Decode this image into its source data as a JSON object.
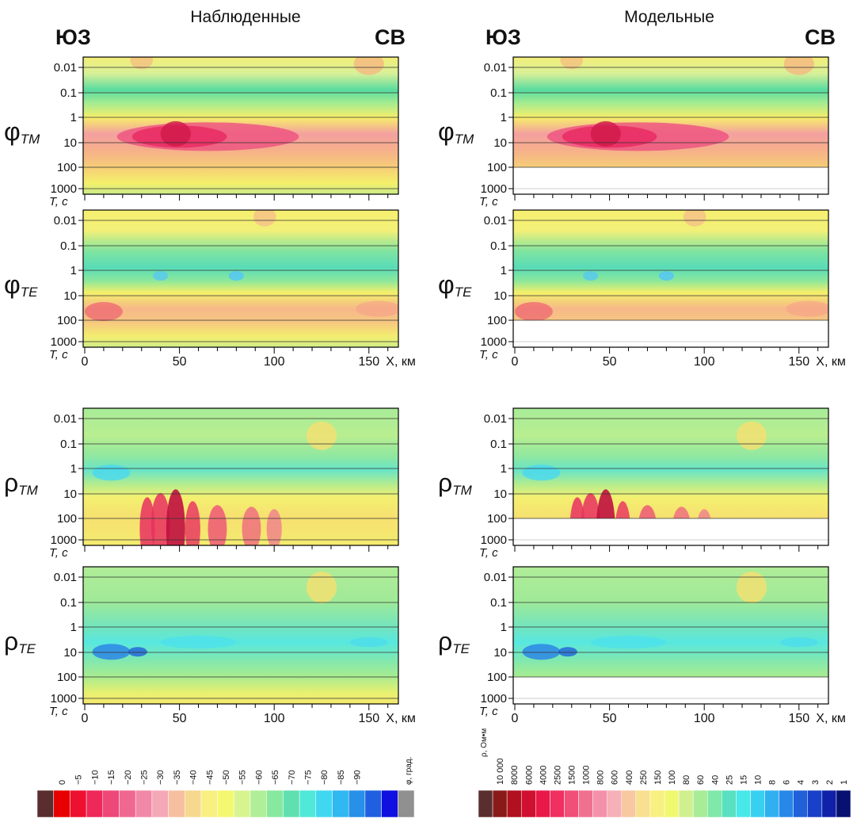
{
  "columns": [
    {
      "title": "Наблюденные",
      "left": "ЮЗ",
      "right": "СВ"
    },
    {
      "title": "Модельные",
      "left": "ЮЗ",
      "right": "СВ"
    }
  ],
  "panels": [
    {
      "symbol": "φ",
      "sub": "TM"
    },
    {
      "symbol": "φ",
      "sub": "TE"
    },
    {
      "symbol": "ρ",
      "sub": "TM"
    },
    {
      "symbol": "ρ",
      "sub": "TE"
    }
  ],
  "y_axis": {
    "label": "T, с",
    "ticks": [
      "0.01",
      "0.1",
      "1",
      "10",
      "100",
      "1000"
    ]
  },
  "x_axis": {
    "label": "X, км",
    "ticks": [
      "0",
      "50",
      "100",
      "150"
    ]
  },
  "phase_scale": {
    "unit": "φ, град.",
    "labels": [
      "0",
      "−5",
      "−10",
      "−15",
      "−20",
      "−25",
      "−30",
      "−35",
      "−40",
      "−45",
      "−50",
      "−55",
      "−60",
      "−65",
      "−70",
      "−75",
      "−80",
      "−85",
      "−90"
    ],
    "colors": [
      "#5a2e2e",
      "#e80000",
      "#ee1030",
      "#ee2858",
      "#ee4878",
      "#f06890",
      "#f288a8",
      "#f4a8b8",
      "#f6c0a0",
      "#f6d890",
      "#f8f080",
      "#f4f870",
      "#d8f490",
      "#b0ee98",
      "#88e8a0",
      "#60e0b0",
      "#50e8d8",
      "#40d8f0",
      "#30b8f0",
      "#2890e8",
      "#2060e0",
      "#1010e0",
      "#909090"
    ]
  },
  "resistivity_scale": {
    "unit": "ρ, Ом•м",
    "labels": [
      "10 000",
      "8000",
      "6000",
      "4000",
      "2500",
      "1500",
      "1000",
      "800",
      "600",
      "400",
      "250",
      "150",
      "100",
      "80",
      "60",
      "40",
      "25",
      "15",
      "10",
      "8",
      "6",
      "4",
      "3",
      "2",
      "1"
    ],
    "colors": [
      "#5a2e2e",
      "#8a1a1a",
      "#b01020",
      "#d01030",
      "#e81848",
      "#f03060",
      "#f05078",
      "#f07090",
      "#f490a8",
      "#f6b0b8",
      "#f8c8a0",
      "#f8e090",
      "#f8f080",
      "#f0f870",
      "#d0f090",
      "#a8ec98",
      "#80e8a8",
      "#58e0c0",
      "#48e8e8",
      "#38d0f0",
      "#30b0f0",
      "#2888e8",
      "#2060d8",
      "#1840c8",
      "#1020a8",
      "#081070"
    ]
  }
}
